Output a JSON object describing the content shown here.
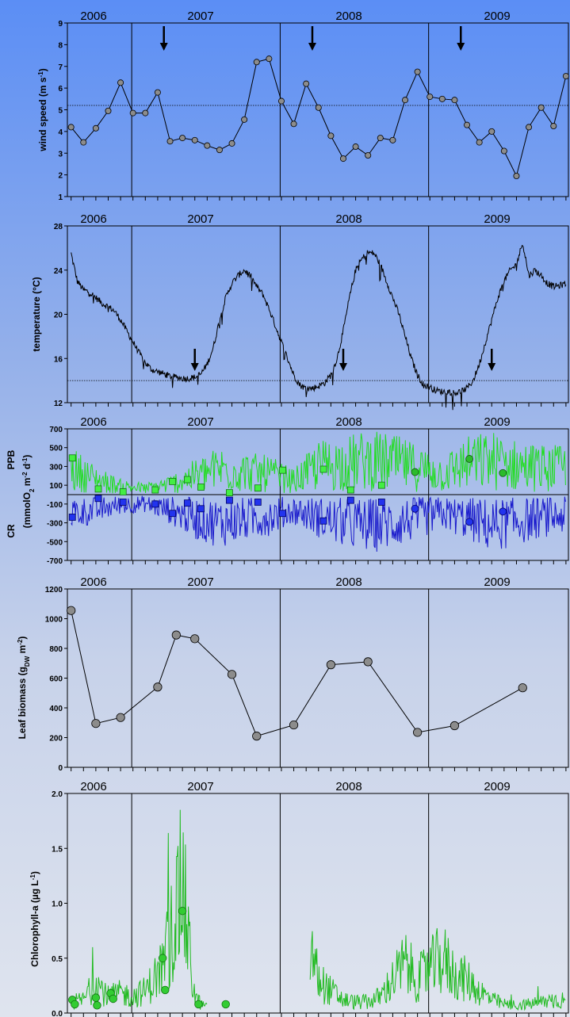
{
  "chart_data": [
    {
      "type": "line",
      "panel": "wind",
      "ylabel": [
        "wind speed (m s",
        "-1",
        ")"
      ],
      "ylim": [
        1,
        9
      ],
      "yticks": [
        1,
        2,
        3,
        4,
        5,
        6,
        7,
        8,
        9
      ],
      "years": [
        "2006",
        "2007",
        "2008",
        "2009"
      ],
      "reference_line": 5.2,
      "arrows_at_month": [
        7.5,
        19.5,
        31.5
      ],
      "x_month": [
        0,
        1,
        2,
        3,
        4,
        5,
        6,
        7,
        8,
        9,
        10,
        11,
        12,
        13,
        14,
        15,
        16,
        17,
        18,
        19,
        20,
        21,
        22,
        23,
        24,
        25,
        26,
        27,
        28,
        29,
        30,
        31,
        32,
        33,
        34,
        35,
        36,
        37,
        38,
        39,
        40
      ],
      "values": [
        4.2,
        3.5,
        4.15,
        4.95,
        6.25,
        4.85,
        4.85,
        5.8,
        3.55,
        3.7,
        3.6,
        3.35,
        3.15,
        3.45,
        4.55,
        7.2,
        7.35,
        5.4,
        4.35,
        6.2,
        5.1,
        3.8,
        2.75,
        3.3,
        2.9,
        3.7,
        3.6,
        5.45,
        6.75,
        5.6,
        5.5,
        5.45,
        4.3,
        3.5,
        4.0,
        3.1,
        1.95,
        4.2,
        5.1,
        4.25,
        6.55
      ]
    },
    {
      "type": "line",
      "panel": "temperature",
      "ylabel": "temperature (°C)",
      "ylim": [
        12,
        28
      ],
      "yticks": [
        12,
        16,
        20,
        24,
        28
      ],
      "years": [
        "2006",
        "2007",
        "2008",
        "2009"
      ],
      "reference_line": 14,
      "arrows_at_month": [
        10,
        22,
        34
      ],
      "x_month": [
        0,
        0.5,
        1,
        1.5,
        2,
        2.5,
        3,
        3.5,
        4,
        4.5,
        5,
        5.5,
        6,
        6.5,
        7,
        7.5,
        8,
        8.5,
        9,
        9.5,
        10,
        10.5,
        11,
        11.5,
        12,
        12.5,
        13,
        13.5,
        14,
        14.5,
        15,
        15.5,
        16,
        16.5,
        17,
        17.5,
        18,
        18.5,
        19,
        19.5,
        20,
        20.5,
        21,
        21.5,
        22,
        22.5,
        23,
        23.5,
        24,
        24.5,
        25,
        25.5,
        26,
        26.5,
        27,
        27.5,
        28,
        28.5,
        29,
        29.5,
        30,
        30.5,
        31,
        31.5,
        32,
        32.5,
        33,
        33.5,
        34,
        34.5,
        35,
        35.5,
        36,
        36.5,
        37,
        37.5,
        38,
        38.5,
        39,
        39.5,
        40
      ],
      "values": [
        25.5,
        23.0,
        22.2,
        22.0,
        21.5,
        21.0,
        20.7,
        20.3,
        19.5,
        18.5,
        17.5,
        16.5,
        15.6,
        15.0,
        14.8,
        14.6,
        14.4,
        14.3,
        14.2,
        14.2,
        14.3,
        14.6,
        15.5,
        17.0,
        19.5,
        21.5,
        22.8,
        23.5,
        24.0,
        23.5,
        22.5,
        21.8,
        20.5,
        19.0,
        17.5,
        16.0,
        14.5,
        13.6,
        13.3,
        13.3,
        13.5,
        13.8,
        14.5,
        16.0,
        18.5,
        21.5,
        24.0,
        25.0,
        25.6,
        25.5,
        24.5,
        23.0,
        21.5,
        20.0,
        18.0,
        16.0,
        14.5,
        13.6,
        13.4,
        13.1,
        13.0,
        13.0,
        12.9,
        13.0,
        13.3,
        14.0,
        15.5,
        17.5,
        19.5,
        21.5,
        23.0,
        24.0,
        24.5,
        26.5,
        23.5,
        24.0,
        23.5,
        22.8,
        22.5,
        22.6,
        22.8
      ]
    },
    {
      "type": "line",
      "panel": "metabolism",
      "ylabel_top": "PPB",
      "ylabel_bottom": "CR",
      "ylabel_units": [
        "(mmolO",
        "2",
        " m",
        "-2",
        " d",
        "-1",
        ")"
      ],
      "ylim": [
        -700,
        700
      ],
      "yticks": [
        -700,
        -500,
        -300,
        -100,
        100,
        300,
        500,
        700
      ],
      "ytick_labels": [
        "-700",
        "-500",
        "-300",
        "-100",
        "100",
        "300",
        "500",
        "700"
      ],
      "years": [
        "2006",
        "2007",
        "2008",
        "2009"
      ],
      "colors": {
        "ppb": "#22dd22",
        "cr": "#1a1acc"
      },
      "series": [
        {
          "name": "PPB",
          "x_month": [
            0,
            2,
            4,
            6,
            8,
            10,
            12,
            14,
            16,
            18,
            20,
            22,
            24,
            26,
            28,
            30,
            32,
            34,
            36,
            38,
            40
          ],
          "values": [
            250,
            150,
            80,
            60,
            100,
            180,
            250,
            220,
            200,
            130,
            280,
            300,
            330,
            310,
            260,
            200,
            300,
            330,
            280,
            260,
            250
          ]
        },
        {
          "name": "CR",
          "x_month": [
            0,
            2,
            4,
            6,
            8,
            10,
            12,
            14,
            16,
            18,
            20,
            22,
            24,
            26,
            28,
            30,
            32,
            34,
            36,
            38,
            40
          ],
          "values": [
            -180,
            -150,
            -100,
            -90,
            -150,
            -230,
            -270,
            -240,
            -210,
            -150,
            -220,
            -270,
            -300,
            -280,
            -230,
            -180,
            -230,
            -300,
            -260,
            -220,
            -200
          ]
        },
        {
          "name": "PPB points",
          "x_month": [
            0.1,
            2.2,
            4.2,
            6.8,
            8.2,
            9.4,
            10.5,
            12.8,
            15.1,
            17.1,
            20.4,
            22.6,
            25.1,
            27.8,
            32.2,
            34.9
          ],
          "values": [
            390,
            60,
            30,
            50,
            140,
            160,
            80,
            20,
            70,
            260,
            270,
            50,
            100,
            240,
            380,
            230
          ]
        },
        {
          "name": "CR points",
          "x_month": [
            0.1,
            2.2,
            4.2,
            6.8,
            8.2,
            9.4,
            10.5,
            12.8,
            15.1,
            17.1,
            20.4,
            22.6,
            25.1,
            27.8,
            32.2,
            34.9
          ],
          "values": [
            -240,
            -40,
            -80,
            -100,
            -200,
            -90,
            -150,
            -60,
            -80,
            -200,
            -280,
            -60,
            -80,
            -150,
            -290,
            -180
          ]
        }
      ]
    },
    {
      "type": "line",
      "panel": "leaf",
      "ylabel": [
        "Leaf biomass (g",
        "DW",
        " m",
        "-2",
        ")"
      ],
      "ylim": [
        0,
        1200
      ],
      "yticks": [
        0,
        200,
        400,
        600,
        800,
        1000,
        1200
      ],
      "years": [
        "2006",
        "2007",
        "2008",
        "2009"
      ],
      "x_month": [
        0,
        2,
        4,
        7,
        8.5,
        10,
        13,
        15,
        18,
        21,
        24,
        28,
        31,
        36.5
      ],
      "values": [
        1055,
        295,
        335,
        540,
        890,
        865,
        625,
        210,
        285,
        690,
        710,
        235,
        280,
        535
      ]
    },
    {
      "type": "line",
      "panel": "chlorophyll",
      "ylabel": [
        "Chlorophyll-a (µg L",
        "-1",
        ")"
      ],
      "ylim": [
        0,
        2.0
      ],
      "yticks": [
        0,
        0.5,
        1.0,
        1.5,
        2.0
      ],
      "ytick_labels": [
        "0.0",
        "0.5",
        "1.0",
        "1.5",
        "2.0"
      ],
      "years": [
        "2006",
        "2007",
        "2008",
        "2009"
      ],
      "color": "#22bb22",
      "series": [
        {
          "name": "Chl line",
          "x_month": [
            0,
            1,
            2,
            3,
            4,
            5,
            6,
            7,
            7.5,
            8,
            8.5,
            9,
            9.5,
            10,
            10.5,
            11,
            12,
            13,
            14,
            15,
            16,
            17,
            18,
            19,
            20,
            21,
            22,
            23,
            24,
            25,
            26,
            27,
            28,
            29,
            30,
            31,
            32,
            33,
            34,
            35,
            36,
            37,
            38,
            39,
            40
          ],
          "values": [
            0.1,
            0.12,
            0.28,
            0.15,
            0.18,
            0.15,
            0.2,
            0.35,
            0.45,
            0.7,
            0.9,
            1.2,
            0.6,
            0.15,
            0.08,
            0.05,
            0.05,
            0.05,
            0.05,
            0.05,
            0.05,
            0.3,
            0.6,
            0.75,
            0.3,
            0.2,
            0.12,
            0.1,
            0.1,
            0.15,
            0.3,
            0.45,
            0.3,
            0.4,
            0.5,
            0.35,
            0.3,
            0.2,
            0.12,
            0.08,
            0.07,
            0.08,
            0.1,
            0.12,
            0.12
          ]
        },
        {
          "name": "Chl points",
          "x_month": [
            0.1,
            0.3,
            2,
            2.1,
            3.2,
            3.4,
            7.4,
            7.6,
            9,
            10.3,
            12.5
          ],
          "values": [
            0.12,
            0.08,
            0.14,
            0.07,
            0.18,
            0.13,
            0.5,
            0.21,
            0.93,
            0.08,
            0.08
          ]
        }
      ]
    }
  ]
}
